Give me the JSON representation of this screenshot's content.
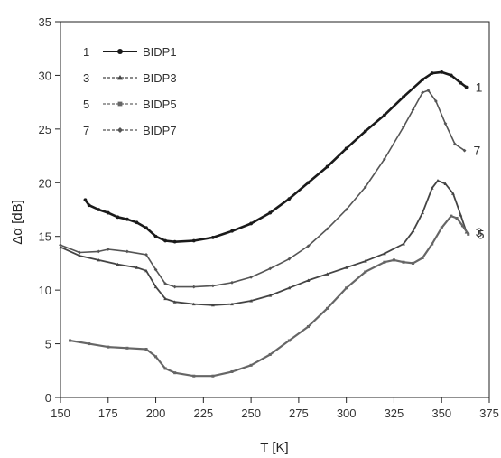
{
  "chart_data": {
    "type": "line",
    "xlabel": "T [K]",
    "ylabel": "Δα [dB]",
    "xlim": [
      150,
      375
    ],
    "ylim": [
      0,
      35
    ],
    "xticks": [
      150,
      175,
      200,
      225,
      250,
      275,
      300,
      325,
      350,
      375
    ],
    "yticks": [
      0,
      5,
      10,
      15,
      20,
      25,
      30,
      35
    ],
    "grid": false,
    "legend_position": "top-left",
    "series": [
      {
        "id": "1",
        "name": "BIDP1",
        "marker": "circle",
        "color": "#1a1a1a",
        "end_label": "1",
        "points": [
          [
            163,
            18.4
          ],
          [
            165,
            17.9
          ],
          [
            170,
            17.5
          ],
          [
            175,
            17.2
          ],
          [
            180,
            16.8
          ],
          [
            185,
            16.6
          ],
          [
            190,
            16.3
          ],
          [
            195,
            15.8
          ],
          [
            200,
            15.0
          ],
          [
            205,
            14.6
          ],
          [
            210,
            14.5
          ],
          [
            220,
            14.6
          ],
          [
            230,
            14.9
          ],
          [
            240,
            15.5
          ],
          [
            250,
            16.2
          ],
          [
            260,
            17.2
          ],
          [
            270,
            18.5
          ],
          [
            280,
            20.0
          ],
          [
            290,
            21.5
          ],
          [
            300,
            23.2
          ],
          [
            310,
            24.8
          ],
          [
            320,
            26.3
          ],
          [
            330,
            28.0
          ],
          [
            340,
            29.6
          ],
          [
            345,
            30.2
          ],
          [
            350,
            30.3
          ],
          [
            355,
            30.0
          ],
          [
            360,
            29.3
          ],
          [
            363,
            28.9
          ]
        ]
      },
      {
        "id": "3",
        "name": "BIDP3",
        "marker": "triangle",
        "color": "#444444",
        "end_label": "3",
        "points": [
          [
            150,
            14.0
          ],
          [
            160,
            13.2
          ],
          [
            170,
            12.8
          ],
          [
            180,
            12.4
          ],
          [
            190,
            12.1
          ],
          [
            195,
            11.8
          ],
          [
            200,
            10.3
          ],
          [
            205,
            9.2
          ],
          [
            210,
            8.9
          ],
          [
            220,
            8.7
          ],
          [
            230,
            8.6
          ],
          [
            240,
            8.7
          ],
          [
            250,
            9.0
          ],
          [
            260,
            9.5
          ],
          [
            270,
            10.2
          ],
          [
            280,
            10.9
          ],
          [
            290,
            11.5
          ],
          [
            300,
            12.1
          ],
          [
            310,
            12.7
          ],
          [
            320,
            13.4
          ],
          [
            330,
            14.3
          ],
          [
            335,
            15.5
          ],
          [
            340,
            17.2
          ],
          [
            345,
            19.5
          ],
          [
            348,
            20.2
          ],
          [
            352,
            19.9
          ],
          [
            356,
            19.0
          ],
          [
            360,
            17.0
          ],
          [
            363,
            15.4
          ]
        ]
      },
      {
        "id": "5",
        "name": "BIDP5",
        "marker": "square",
        "color": "#666666",
        "end_label": "5",
        "points": [
          [
            155,
            5.3
          ],
          [
            165,
            5.0
          ],
          [
            175,
            4.7
          ],
          [
            185,
            4.6
          ],
          [
            195,
            4.5
          ],
          [
            200,
            3.8
          ],
          [
            205,
            2.7
          ],
          [
            210,
            2.3
          ],
          [
            220,
            2.0
          ],
          [
            230,
            2.0
          ],
          [
            240,
            2.4
          ],
          [
            250,
            3.0
          ],
          [
            260,
            4.0
          ],
          [
            270,
            5.3
          ],
          [
            280,
            6.6
          ],
          [
            290,
            8.3
          ],
          [
            300,
            10.2
          ],
          [
            310,
            11.7
          ],
          [
            320,
            12.6
          ],
          [
            325,
            12.8
          ],
          [
            330,
            12.6
          ],
          [
            335,
            12.5
          ],
          [
            340,
            13.0
          ],
          [
            345,
            14.3
          ],
          [
            350,
            15.8
          ],
          [
            355,
            16.9
          ],
          [
            358,
            16.7
          ],
          [
            361,
            16.0
          ],
          [
            364,
            15.2
          ]
        ]
      },
      {
        "id": "7",
        "name": "BIDP7",
        "marker": "diamond",
        "color": "#555555",
        "end_label": "7",
        "points": [
          [
            150,
            14.2
          ],
          [
            160,
            13.5
          ],
          [
            170,
            13.6
          ],
          [
            175,
            13.8
          ],
          [
            185,
            13.6
          ],
          [
            195,
            13.3
          ],
          [
            200,
            11.9
          ],
          [
            205,
            10.6
          ],
          [
            210,
            10.3
          ],
          [
            220,
            10.3
          ],
          [
            230,
            10.4
          ],
          [
            240,
            10.7
          ],
          [
            250,
            11.2
          ],
          [
            260,
            12.0
          ],
          [
            270,
            12.9
          ],
          [
            280,
            14.1
          ],
          [
            290,
            15.7
          ],
          [
            300,
            17.5
          ],
          [
            310,
            19.6
          ],
          [
            320,
            22.2
          ],
          [
            330,
            25.2
          ],
          [
            335,
            26.8
          ],
          [
            340,
            28.4
          ],
          [
            343,
            28.6
          ],
          [
            347,
            27.6
          ],
          [
            352,
            25.5
          ],
          [
            357,
            23.6
          ],
          [
            362,
            23.0
          ]
        ]
      }
    ]
  }
}
